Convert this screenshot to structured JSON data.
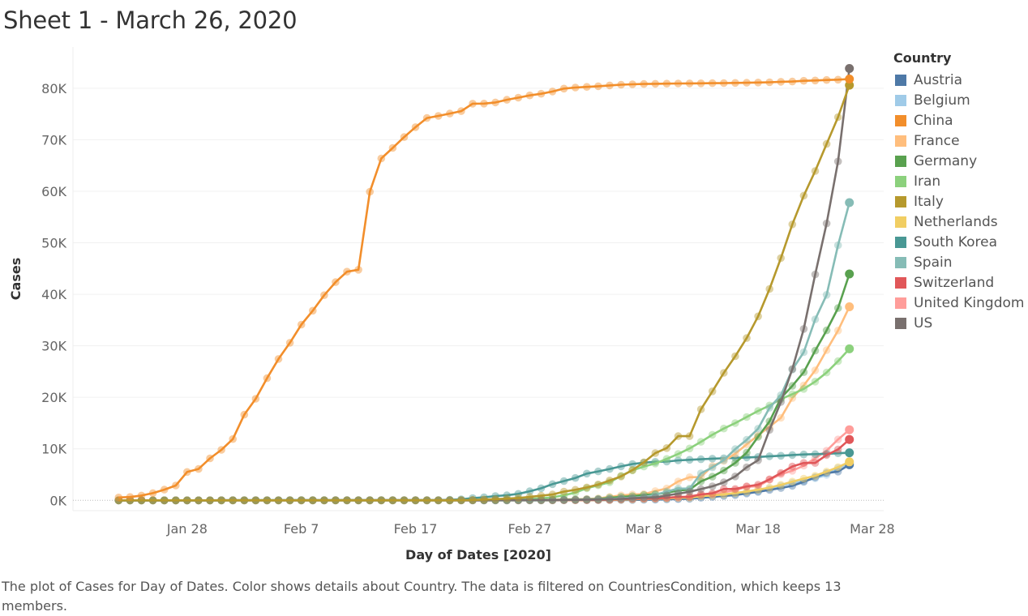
{
  "page": {
    "title": "Sheet 1 - March 26, 2020",
    "caption": "The plot of Cases for Day of Dates.  Color shows details about Country. The data is filtered on CountriesCondition, which keeps 13 members."
  },
  "legend": {
    "title": "Country",
    "items": [
      {
        "label": "Austria",
        "color": "#4e79a7"
      },
      {
        "label": "Belgium",
        "color": "#a0cbe8"
      },
      {
        "label": "China",
        "color": "#f28e2b"
      },
      {
        "label": "France",
        "color": "#ffbe7d"
      },
      {
        "label": "Germany",
        "color": "#59a14f"
      },
      {
        "label": "Iran",
        "color": "#8cd17d"
      },
      {
        "label": "Italy",
        "color": "#b6992d"
      },
      {
        "label": "Netherlands",
        "color": "#f1ce63"
      },
      {
        "label": "South Korea",
        "color": "#499894"
      },
      {
        "label": "Spain",
        "color": "#86bcb6"
      },
      {
        "label": "Switzerland",
        "color": "#e15759"
      },
      {
        "label": "United Kingdom",
        "color": "#ff9d9a"
      },
      {
        "label": "US",
        "color": "#79706e"
      }
    ]
  },
  "chart_data": {
    "type": "line",
    "title": "Sheet 1 - March 26, 2020",
    "xlabel": "Day of Dates [2020]",
    "ylabel": "Cases",
    "x_start": "2020-01-22",
    "x_end": "2020-03-26",
    "xlim": [
      "2020-01-18",
      "2020-03-29"
    ],
    "ylim": [
      -2000,
      88000
    ],
    "grid": true,
    "legend_position": "right",
    "x_ticks": [
      {
        "date": "2020-01-28",
        "label": "Jan 28"
      },
      {
        "date": "2020-02-07",
        "label": "Feb 7"
      },
      {
        "date": "2020-02-17",
        "label": "Feb 17"
      },
      {
        "date": "2020-02-27",
        "label": "Feb 27"
      },
      {
        "date": "2020-03-08",
        "label": "Mar 8"
      },
      {
        "date": "2020-03-18",
        "label": "Mar 18"
      },
      {
        "date": "2020-03-28",
        "label": "Mar 28"
      }
    ],
    "y_ticks": [
      {
        "value": 0,
        "label": "0K"
      },
      {
        "value": 10000,
        "label": "10K"
      },
      {
        "value": 20000,
        "label": "20K"
      },
      {
        "value": 30000,
        "label": "30K"
      },
      {
        "value": 40000,
        "label": "40K"
      },
      {
        "value": 50000,
        "label": "50K"
      },
      {
        "value": 60000,
        "label": "60K"
      },
      {
        "value": 70000,
        "label": "70K"
      },
      {
        "value": 80000,
        "label": "80K"
      }
    ],
    "series": [
      {
        "name": "China",
        "color": "#f28e2b",
        "values": [
          548,
          643,
          920,
          1406,
          2075,
          2877,
          5509,
          6087,
          8141,
          9802,
          11891,
          16630,
          19716,
          23707,
          27440,
          30587,
          34110,
          36814,
          39829,
          42354,
          44386,
          44759,
          59895,
          66358,
          68413,
          70513,
          72434,
          74211,
          74619,
          75077,
          75550,
          77001,
          77022,
          77241,
          77754,
          78166,
          78600,
          78928,
          79356,
          79932,
          80136,
          80261,
          80386,
          80537,
          80690,
          80770,
          80823,
          80860,
          80887,
          80921,
          80932,
          80945,
          80977,
          81003,
          81033,
          81058,
          81102,
          81156,
          81250,
          81305,
          81435,
          81498,
          81591,
          81661,
          81782
        ]
      },
      {
        "name": "Italy",
        "color": "#b6992d",
        "values": [
          0,
          0,
          0,
          0,
          0,
          0,
          0,
          0,
          0,
          2,
          2,
          2,
          2,
          2,
          2,
          2,
          3,
          3,
          3,
          3,
          3,
          3,
          3,
          3,
          3,
          3,
          3,
          3,
          3,
          3,
          20,
          62,
          155,
          229,
          322,
          453,
          655,
          888,
          1128,
          1694,
          2036,
          2502,
          3089,
          3858,
          4636,
          5883,
          7375,
          9172,
          10149,
          12462,
          12462,
          17660,
          21157,
          24747,
          27980,
          31506,
          35713,
          41035,
          47021,
          53578,
          59138,
          63927,
          69176,
          74386,
          80589
        ]
      },
      {
        "name": "US",
        "color": "#79706e",
        "values": [
          1,
          1,
          2,
          2,
          5,
          5,
          5,
          5,
          5,
          7,
          8,
          8,
          11,
          11,
          11,
          11,
          11,
          11,
          11,
          11,
          12,
          12,
          13,
          13,
          13,
          13,
          13,
          13,
          13,
          13,
          15,
          15,
          15,
          51,
          51,
          57,
          58,
          60,
          68,
          74,
          98,
          118,
          149,
          217,
          262,
          402,
          518,
          583,
          959,
          1281,
          1663,
          2179,
          2727,
          3499,
          4632,
          6421,
          7786,
          13680,
          19101,
          25493,
          33276,
          43847,
          53740,
          65778,
          83836
        ]
      },
      {
        "name": "Spain",
        "color": "#86bcb6",
        "values": [
          0,
          0,
          0,
          0,
          0,
          0,
          0,
          0,
          0,
          0,
          1,
          1,
          1,
          1,
          1,
          1,
          1,
          1,
          1,
          1,
          2,
          2,
          2,
          2,
          2,
          2,
          2,
          2,
          2,
          2,
          2,
          2,
          2,
          2,
          6,
          13,
          15,
          32,
          45,
          84,
          120,
          165,
          222,
          259,
          400,
          500,
          673,
          1073,
          1695,
          2277,
          2277,
          5232,
          6391,
          7798,
          9942,
          11748,
          13910,
          17963,
          20410,
          25374,
          28768,
          35136,
          39885,
          49515,
          57786
        ]
      },
      {
        "name": "Germany",
        "color": "#59a14f",
        "values": [
          0,
          0,
          0,
          0,
          0,
          1,
          4,
          4,
          4,
          5,
          8,
          10,
          12,
          12,
          12,
          12,
          13,
          13,
          14,
          14,
          16,
          16,
          16,
          16,
          16,
          16,
          16,
          16,
          16,
          16,
          16,
          16,
          16,
          16,
          17,
          27,
          46,
          48,
          79,
          130,
          159,
          196,
          262,
          482,
          670,
          799,
          1040,
          1176,
          1457,
          1908,
          2078,
          3675,
          4585,
          5795,
          7272,
          9257,
          12327,
          15320,
          19848,
          22213,
          24873,
          29056,
          32986,
          37323,
          43938
        ]
      },
      {
        "name": "Iran",
        "color": "#8cd17d",
        "values": [
          0,
          0,
          0,
          0,
          0,
          0,
          0,
          0,
          0,
          0,
          0,
          0,
          0,
          0,
          0,
          0,
          0,
          0,
          0,
          0,
          0,
          0,
          0,
          0,
          0,
          0,
          0,
          0,
          2,
          5,
          18,
          28,
          43,
          61,
          95,
          139,
          245,
          388,
          593,
          978,
          1501,
          2336,
          2922,
          3513,
          4747,
          5823,
          6566,
          7161,
          8042,
          9000,
          10075,
          11364,
          12729,
          13938,
          14991,
          16169,
          17361,
          18407,
          19644,
          20610,
          21638,
          23049,
          24811,
          27017,
          29406
        ]
      },
      {
        "name": "France",
        "color": "#ffbe7d",
        "values": [
          0,
          0,
          2,
          3,
          3,
          3,
          4,
          5,
          5,
          5,
          6,
          6,
          6,
          6,
          6,
          6,
          6,
          11,
          11,
          11,
          11,
          11,
          11,
          11,
          12,
          12,
          12,
          12,
          12,
          12,
          12,
          12,
          12,
          12,
          18,
          38,
          57,
          100,
          130,
          191,
          204,
          288,
          380,
          656,
          957,
          1134,
          1217,
          1792,
          2289,
          3672,
          4480,
          4513,
          6650,
          7652,
          9043,
          10871,
          12612,
          14282,
          16018,
          19856,
          22304,
          25233,
          29155,
          32964,
          37575
        ]
      },
      {
        "name": "Switzerland",
        "color": "#e15759",
        "values": [
          0,
          0,
          0,
          0,
          0,
          0,
          0,
          0,
          0,
          0,
          0,
          0,
          0,
          0,
          0,
          0,
          0,
          0,
          0,
          0,
          0,
          0,
          0,
          0,
          0,
          0,
          0,
          0,
          0,
          0,
          0,
          0,
          0,
          0,
          1,
          1,
          8,
          8,
          18,
          27,
          42,
          56,
          90,
          114,
          214,
          268,
          337,
          374,
          491,
          652,
          652,
          1139,
          1359,
          2200,
          2200,
          2700,
          3028,
          4075,
          5294,
          6575,
          7245,
          7245,
          8795,
          9877,
          11811
        ]
      },
      {
        "name": "South Korea",
        "color": "#499894",
        "values": [
          1,
          1,
          2,
          2,
          3,
          4,
          4,
          4,
          4,
          11,
          12,
          15,
          15,
          16,
          19,
          23,
          24,
          24,
          25,
          27,
          28,
          28,
          28,
          28,
          28,
          29,
          30,
          31,
          31,
          104,
          204,
          433,
          602,
          833,
          977,
          1261,
          1766,
          2337,
          3150,
          3736,
          4335,
          5186,
          5621,
          6088,
          6593,
          7041,
          7314,
          7478,
          7513,
          7755,
          7869,
          7979,
          8086,
          8162,
          8236,
          8320,
          8413,
          8565,
          8652,
          8799,
          8897,
          8961,
          9037,
          9137,
          9241
        ]
      },
      {
        "name": "Netherlands",
        "color": "#f1ce63",
        "values": [
          0,
          0,
          0,
          0,
          0,
          0,
          0,
          0,
          0,
          0,
          0,
          0,
          0,
          0,
          0,
          0,
          0,
          0,
          0,
          0,
          0,
          0,
          0,
          0,
          0,
          0,
          0,
          0,
          0,
          0,
          0,
          0,
          0,
          0,
          0,
          0,
          1,
          1,
          6,
          10,
          18,
          24,
          38,
          82,
          128,
          188,
          265,
          321,
          382,
          503,
          503,
          806,
          962,
          1138,
          1416,
          1711,
          2058,
          2467,
          3003,
          3640,
          4217,
          4764,
          5580,
          6438,
          7468
        ]
      },
      {
        "name": "United Kingdom",
        "color": "#ff9d9a",
        "values": [
          0,
          0,
          0,
          0,
          0,
          0,
          0,
          0,
          0,
          2,
          2,
          2,
          2,
          2,
          2,
          2,
          3,
          3,
          3,
          8,
          8,
          9,
          9,
          9,
          9,
          9,
          9,
          9,
          9,
          9,
          9,
          9,
          13,
          13,
          13,
          15,
          20,
          23,
          36,
          40,
          51,
          86,
          116,
          164,
          207,
          274,
          322,
          384,
          459,
          459,
          802,
          1144,
          1145,
          1551,
          1960,
          2642,
          2716,
          4014,
          5067,
          5745,
          6726,
          8164,
          9640,
          11812,
          13696
        ]
      },
      {
        "name": "Austria",
        "color": "#4e79a7",
        "values": [
          0,
          0,
          0,
          0,
          0,
          0,
          0,
          0,
          0,
          0,
          0,
          0,
          0,
          0,
          0,
          0,
          0,
          0,
          0,
          0,
          0,
          0,
          0,
          0,
          0,
          0,
          0,
          0,
          0,
          0,
          0,
          0,
          0,
          0,
          2,
          2,
          3,
          3,
          9,
          14,
          18,
          21,
          29,
          41,
          55,
          79,
          104,
          131,
          182,
          246,
          302,
          504,
          655,
          860,
          1018,
          1332,
          1646,
          2013,
          2388,
          2814,
          3582,
          4474,
          5283,
          5588,
          6909
        ]
      },
      {
        "name": "Belgium",
        "color": "#a0cbe8",
        "values": [
          0,
          0,
          0,
          0,
          0,
          0,
          0,
          0,
          0,
          0,
          0,
          0,
          0,
          0,
          1,
          1,
          1,
          1,
          1,
          1,
          1,
          1,
          1,
          1,
          1,
          1,
          1,
          1,
          1,
          1,
          1,
          1,
          1,
          1,
          1,
          1,
          1,
          1,
          2,
          8,
          13,
          23,
          50,
          109,
          169,
          200,
          239,
          267,
          314,
          314,
          559,
          689,
          886,
          1058,
          1243,
          1486,
          1795,
          2257,
          2815,
          3401,
          3743,
          4269,
          4937,
          6235,
          7284
        ]
      }
    ]
  }
}
